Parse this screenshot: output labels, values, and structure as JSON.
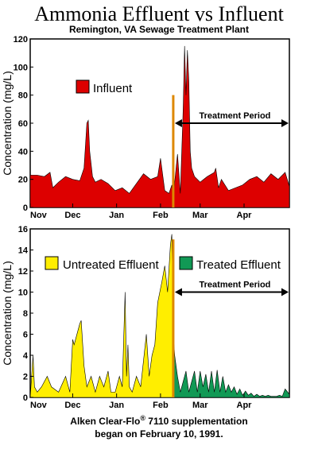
{
  "title": "Ammonia Effluent vs Influent",
  "subtitle": "Remington, VA  Sewage Treatment Plant",
  "caption": {
    "line1_prefix": "Alken Clear-Flo",
    "line1_mark": "®",
    "line1_suffix": " 7110 supplementation",
    "line2": "began on February 10, 1991."
  },
  "colors": {
    "influent": "#dd0000",
    "untreated": "#ffee00",
    "treated": "#119955",
    "marker": "#dd8800"
  },
  "chart_data": [
    {
      "type": "area",
      "ylabel": "Concentration (mg/L)",
      "ylim": [
        0,
        120
      ],
      "yticks": [
        "0",
        "20",
        "40",
        "60",
        "80",
        "100",
        "120"
      ],
      "xlim": [
        0,
        183
      ],
      "xticks": [
        {
          "label": "Nov",
          "x": 0
        },
        {
          "label": "Dec",
          "x": 30
        },
        {
          "label": "Jan",
          "x": 61
        },
        {
          "label": "Feb",
          "x": 92
        },
        {
          "label": "Mar",
          "x": 120
        },
        {
          "label": "Apr",
          "x": 151
        }
      ],
      "marker_x": 101,
      "marker_y": 80,
      "annotation": {
        "label": "Treatment Period",
        "x_start": 101,
        "x_end": 183,
        "y": 60
      },
      "legend": [
        {
          "name": "Influent",
          "position": "top-left"
        }
      ],
      "series": [
        {
          "name": "Influent",
          "x": [
            0,
            5,
            10,
            14,
            16,
            20,
            25,
            30,
            35,
            38,
            40,
            41,
            42,
            44,
            46,
            50,
            55,
            60,
            65,
            70,
            75,
            80,
            85,
            90,
            92,
            95,
            98,
            100,
            101,
            102,
            104,
            106,
            108,
            109,
            110,
            111,
            112,
            113,
            114,
            116,
            120,
            125,
            130,
            131,
            133,
            135,
            140,
            145,
            150,
            155,
            160,
            165,
            170,
            175,
            180,
            183
          ],
          "y": [
            23,
            23,
            22,
            25,
            14,
            18,
            22,
            20,
            19,
            28,
            60,
            62,
            40,
            22,
            18,
            20,
            17,
            12,
            14,
            10,
            17,
            24,
            20,
            22,
            35,
            12,
            10,
            16,
            8,
            18,
            38,
            10,
            70,
            115,
            80,
            112,
            90,
            40,
            28,
            22,
            18,
            22,
            25,
            28,
            14,
            20,
            12,
            14,
            16,
            20,
            22,
            18,
            24,
            20,
            25,
            15
          ]
        }
      ]
    },
    {
      "type": "area",
      "ylabel": "Concentration (mg/L)",
      "ylim": [
        0,
        16
      ],
      "yticks": [
        "0",
        "2",
        "4",
        "6",
        "8",
        "10",
        "12",
        "14",
        "16"
      ],
      "xlim": [
        0,
        183
      ],
      "xticks": [
        {
          "label": "Nov",
          "x": 0
        },
        {
          "label": "Dec",
          "x": 30
        },
        {
          "label": "Jan",
          "x": 61
        },
        {
          "label": "Feb",
          "x": 92
        },
        {
          "label": "Mar",
          "x": 120
        },
        {
          "label": "Apr",
          "x": 151
        }
      ],
      "marker_x": 101,
      "marker_y": 15,
      "annotation": {
        "label": "Treatment Period",
        "x_start": 101,
        "x_end": 183,
        "y": 10
      },
      "legend": [
        {
          "name": "Untreated Effluent",
          "position": "top-left"
        },
        {
          "name": "Treated Effluent",
          "position": "top-right"
        }
      ],
      "series": [
        {
          "name": "Untreated Effluent",
          "x": [
            0,
            2,
            3,
            5,
            8,
            12,
            15,
            20,
            25,
            28,
            30,
            31,
            33,
            35,
            36,
            38,
            40,
            43,
            46,
            49,
            52,
            55,
            57,
            60,
            63,
            65,
            67,
            68,
            69,
            70,
            72,
            75,
            78,
            82,
            84,
            86,
            88,
            90,
            93,
            95,
            97,
            99,
            100,
            101
          ],
          "y": [
            0,
            4,
            1,
            0.5,
            1,
            2,
            1,
            0.5,
            2,
            0.5,
            5.5,
            5,
            6,
            7,
            7.3,
            3,
            1,
            2,
            0.5,
            2,
            1,
            2.5,
            0.5,
            0.5,
            2,
            1,
            10,
            2,
            5,
            1,
            0.5,
            2,
            1,
            6,
            2,
            4,
            5,
            9,
            11,
            12.5,
            10,
            14.5,
            15.5,
            8.5
          ]
        },
        {
          "name": "Treated Effluent",
          "x": [
            101,
            102,
            104,
            106,
            108,
            110,
            112,
            114,
            116,
            118,
            120,
            122,
            124,
            126,
            128,
            130,
            132,
            134,
            136,
            138,
            140,
            142,
            144,
            146,
            148,
            150,
            152,
            154,
            156,
            158,
            160,
            162,
            164,
            166,
            168,
            170,
            172,
            174,
            176,
            178,
            180,
            183
          ],
          "y": [
            6,
            4,
            2,
            0.5,
            1.5,
            2.5,
            0.5,
            1.5,
            2.5,
            0.5,
            2.5,
            1,
            2.2,
            0.5,
            2.5,
            0.5,
            2.6,
            0.5,
            2,
            0.5,
            1.2,
            0.5,
            1,
            0.3,
            0.8,
            0.2,
            0.6,
            0.2,
            0.4,
            0.1,
            0.3,
            0.1,
            0.2,
            0.1,
            0.2,
            0.1,
            0.1,
            0.1,
            0.2,
            0.1,
            0.8,
            0.3
          ]
        }
      ]
    }
  ]
}
